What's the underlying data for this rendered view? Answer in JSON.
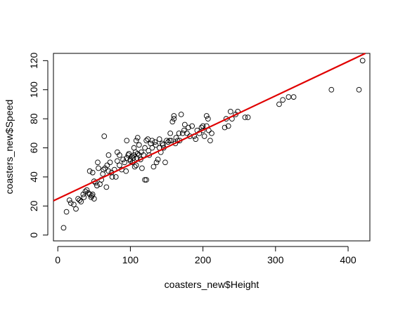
{
  "chart_data": {
    "type": "scatter",
    "title": "",
    "xlabel": "coasters_new$Height",
    "ylabel": "coasters_new$Speed",
    "xlim": [
      -6,
      430
    ],
    "ylim": [
      -4,
      125
    ],
    "xticks": [
      0,
      100,
      200,
      300,
      400
    ],
    "yticks": [
      0,
      20,
      40,
      60,
      80,
      100,
      120
    ],
    "grid": false,
    "legend": "none",
    "point_color": "#000000",
    "line_color": "#e00000",
    "regression_line": {
      "intercept": 25,
      "slope": 0.236
    },
    "points": [
      [
        8,
        5
      ],
      [
        12,
        16
      ],
      [
        16,
        24
      ],
      [
        18,
        22
      ],
      [
        22,
        21
      ],
      [
        25,
        18
      ],
      [
        28,
        25
      ],
      [
        30,
        24
      ],
      [
        32,
        23
      ],
      [
        35,
        28
      ],
      [
        36,
        26
      ],
      [
        38,
        30
      ],
      [
        40,
        31
      ],
      [
        42,
        29
      ],
      [
        44,
        28
      ],
      [
        46,
        26
      ],
      [
        47,
        27
      ],
      [
        48,
        28
      ],
      [
        50,
        25
      ],
      [
        44,
        44
      ],
      [
        48,
        43
      ],
      [
        50,
        37
      ],
      [
        52,
        36
      ],
      [
        54,
        34
      ],
      [
        56,
        46
      ],
      [
        55,
        50
      ],
      [
        58,
        35
      ],
      [
        60,
        38
      ],
      [
        62,
        42
      ],
      [
        63,
        45
      ],
      [
        64,
        68
      ],
      [
        65,
        46
      ],
      [
        67,
        33
      ],
      [
        68,
        48
      ],
      [
        70,
        44
      ],
      [
        70,
        55
      ],
      [
        72,
        50
      ],
      [
        74,
        43
      ],
      [
        75,
        40
      ],
      [
        78,
        45
      ],
      [
        80,
        40
      ],
      [
        82,
        51
      ],
      [
        82,
        57
      ],
      [
        85,
        55
      ],
      [
        85,
        48
      ],
      [
        88,
        45
      ],
      [
        90,
        52
      ],
      [
        92,
        50
      ],
      [
        94,
        44
      ],
      [
        95,
        65
      ],
      [
        95,
        53
      ],
      [
        97,
        55
      ],
      [
        98,
        56
      ],
      [
        100,
        52
      ],
      [
        100,
        51
      ],
      [
        102,
        54
      ],
      [
        103,
        50
      ],
      [
        104,
        53
      ],
      [
        105,
        60
      ],
      [
        105,
        55
      ],
      [
        106,
        47
      ],
      [
        107,
        57
      ],
      [
        108,
        48
      ],
      [
        108,
        65
      ],
      [
        109,
        53
      ],
      [
        110,
        67
      ],
      [
        110,
        56
      ],
      [
        112,
        62
      ],
      [
        112,
        55
      ],
      [
        114,
        52
      ],
      [
        115,
        57
      ],
      [
        116,
        46
      ],
      [
        118,
        55
      ],
      [
        120,
        38
      ],
      [
        120,
        60
      ],
      [
        122,
        65
      ],
      [
        122,
        38
      ],
      [
        124,
        66
      ],
      [
        125,
        58
      ],
      [
        126,
        55
      ],
      [
        128,
        63
      ],
      [
        130,
        60
      ],
      [
        130,
        65
      ],
      [
        132,
        47
      ],
      [
        134,
        64
      ],
      [
        135,
        62
      ],
      [
        136,
        50
      ],
      [
        138,
        52
      ],
      [
        140,
        60
      ],
      [
        140,
        66
      ],
      [
        142,
        57
      ],
      [
        144,
        63
      ],
      [
        145,
        62
      ],
      [
        146,
        60
      ],
      [
        148,
        50
      ],
      [
        150,
        65
      ],
      [
        152,
        64
      ],
      [
        154,
        65
      ],
      [
        155,
        70
      ],
      [
        156,
        65
      ],
      [
        158,
        78
      ],
      [
        160,
        82
      ],
      [
        160,
        80
      ],
      [
        162,
        63
      ],
      [
        163,
        67
      ],
      [
        165,
        65
      ],
      [
        167,
        70
      ],
      [
        168,
        65
      ],
      [
        170,
        83
      ],
      [
        172,
        70
      ],
      [
        174,
        72
      ],
      [
        175,
        76
      ],
      [
        178,
        70
      ],
      [
        180,
        74
      ],
      [
        182,
        68
      ],
      [
        185,
        75
      ],
      [
        188,
        68
      ],
      [
        190,
        66
      ],
      [
        192,
        72
      ],
      [
        195,
        70
      ],
      [
        198,
        74
      ],
      [
        200,
        75
      ],
      [
        200,
        72
      ],
      [
        202,
        68
      ],
      [
        205,
        82
      ],
      [
        205,
        75
      ],
      [
        207,
        80
      ],
      [
        208,
        72
      ],
      [
        210,
        65
      ],
      [
        212,
        70
      ],
      [
        230,
        74
      ],
      [
        232,
        80
      ],
      [
        235,
        75
      ],
      [
        238,
        85
      ],
      [
        240,
        80
      ],
      [
        245,
        83
      ],
      [
        248,
        85
      ],
      [
        258,
        81
      ],
      [
        262,
        81
      ],
      [
        305,
        90
      ],
      [
        310,
        93
      ],
      [
        318,
        95
      ],
      [
        325,
        95
      ],
      [
        377,
        100
      ],
      [
        415,
        100
      ],
      [
        420,
        120
      ]
    ]
  }
}
